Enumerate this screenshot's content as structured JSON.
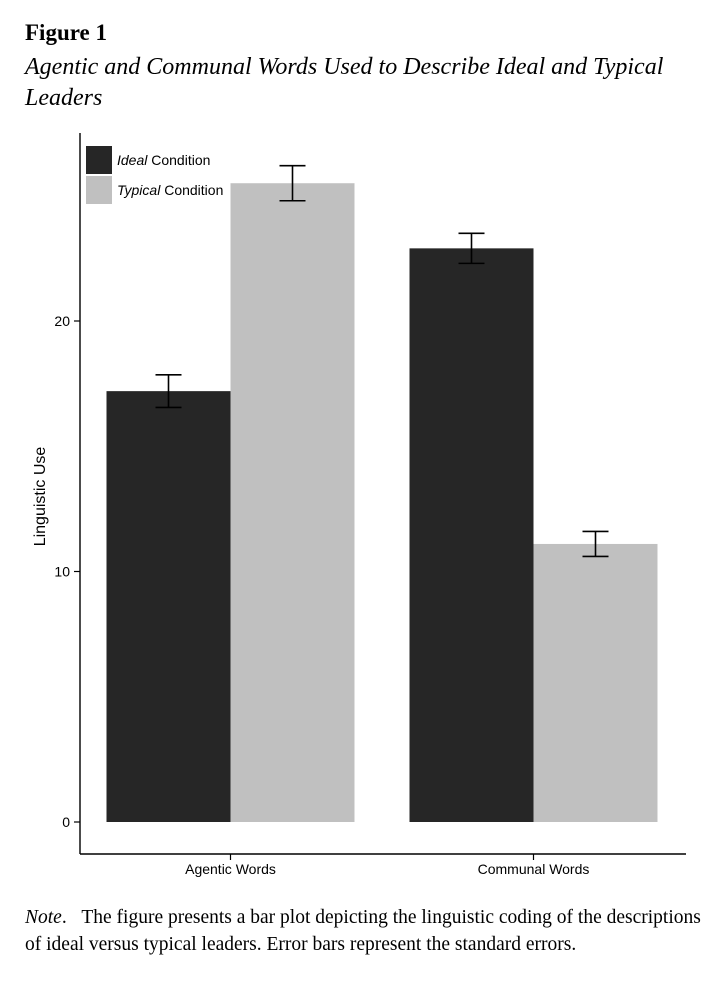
{
  "figure": {
    "label": "Figure 1",
    "title": "Agentic and Communal Words Used to Describe Ideal and Typical Leaders"
  },
  "note": {
    "label": "Note",
    "text": "The figure presents a bar plot depicting the linguistic coding of the descriptions of ideal versus typical leaders. Error bars represent the standard errors."
  },
  "chart_data": {
    "type": "bar",
    "title": "Agentic and Communal Words Used to Describe Ideal and Typical Leaders",
    "xlabel": "",
    "ylabel": "Linguistic Use",
    "ylim": [
      0,
      27
    ],
    "yticks": [
      0,
      10,
      20
    ],
    "categories": [
      "Agentic Words",
      "Communal Words"
    ],
    "series": [
      {
        "legend_emph": "Ideal",
        "legend_rest": " Condition",
        "color": "#262626",
        "values": [
          17.2,
          22.9
        ],
        "errors": [
          0.65,
          0.6
        ]
      },
      {
        "legend_emph": "Typical",
        "legend_rest": " Condition",
        "color": "#c0c0c0",
        "values": [
          25.5,
          11.1
        ],
        "errors": [
          0.7,
          0.5
        ]
      }
    ],
    "legend_position": "top-left",
    "grid": false
  }
}
